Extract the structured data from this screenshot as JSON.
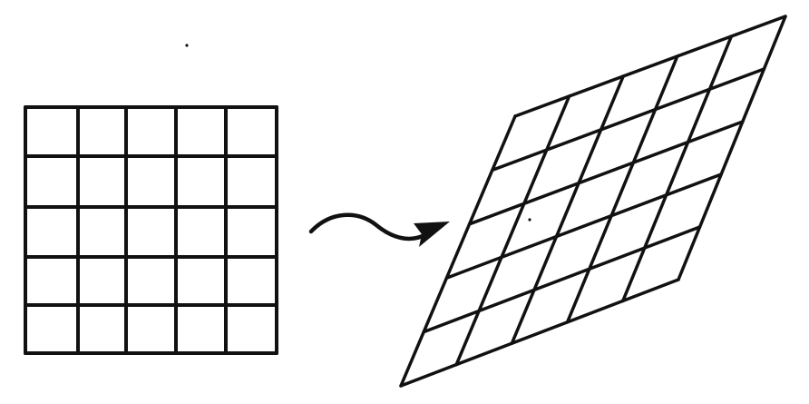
{
  "diagram": {
    "description_free": true,
    "ink_color": "#111111",
    "background_color": "#ffffff",
    "source_grid": {
      "rows": 5,
      "cols": 5,
      "shape": "square"
    },
    "target_grid": {
      "rows": 5,
      "cols": 5,
      "shape": "sheared-parallelogram"
    },
    "connector": {
      "type": "wavy-arrow",
      "direction": "left-to-right"
    }
  }
}
